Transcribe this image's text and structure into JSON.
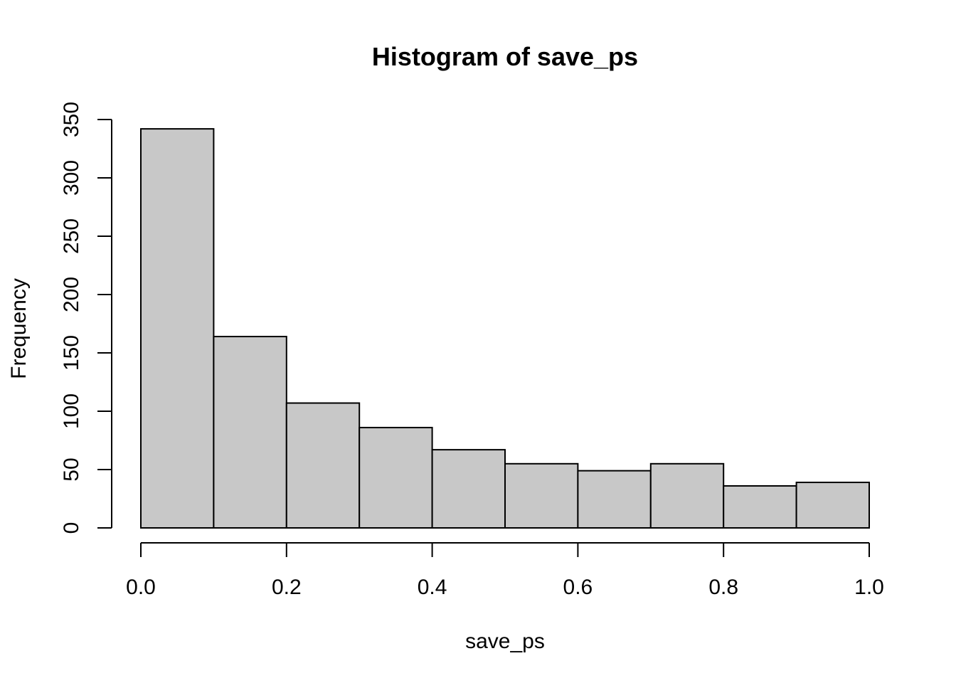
{
  "chart_data": {
    "type": "bar",
    "subtype": "histogram",
    "title": "Histogram of save_ps",
    "xlabel": "save_ps",
    "ylabel": "Frequency",
    "bins": [
      {
        "from": 0.0,
        "to": 0.1,
        "count": 342
      },
      {
        "from": 0.1,
        "to": 0.2,
        "count": 164
      },
      {
        "from": 0.2,
        "to": 0.3,
        "count": 107
      },
      {
        "from": 0.3,
        "to": 0.4,
        "count": 86
      },
      {
        "from": 0.4,
        "to": 0.5,
        "count": 67
      },
      {
        "from": 0.5,
        "to": 0.6,
        "count": 55
      },
      {
        "from": 0.6,
        "to": 0.7,
        "count": 49
      },
      {
        "from": 0.7,
        "to": 0.8,
        "count": 55
      },
      {
        "from": 0.8,
        "to": 0.9,
        "count": 36
      },
      {
        "from": 0.9,
        "to": 1.0,
        "count": 39
      }
    ],
    "xlim": [
      0.0,
      1.0
    ],
    "ylim": [
      0,
      350
    ],
    "x_ticks": [
      0.0,
      0.2,
      0.4,
      0.6,
      0.8,
      1.0
    ],
    "x_tick_labels": [
      "0.0",
      "0.2",
      "0.4",
      "0.6",
      "0.8",
      "1.0"
    ],
    "y_ticks": [
      0,
      50,
      100,
      150,
      200,
      250,
      300,
      350
    ],
    "y_tick_labels": [
      "0",
      "50",
      "100",
      "150",
      "200",
      "250",
      "300",
      "350"
    ],
    "grid": false,
    "legend": "none",
    "bar_fill_color": "#c8c8c8",
    "bar_edge_color": "#000000"
  }
}
